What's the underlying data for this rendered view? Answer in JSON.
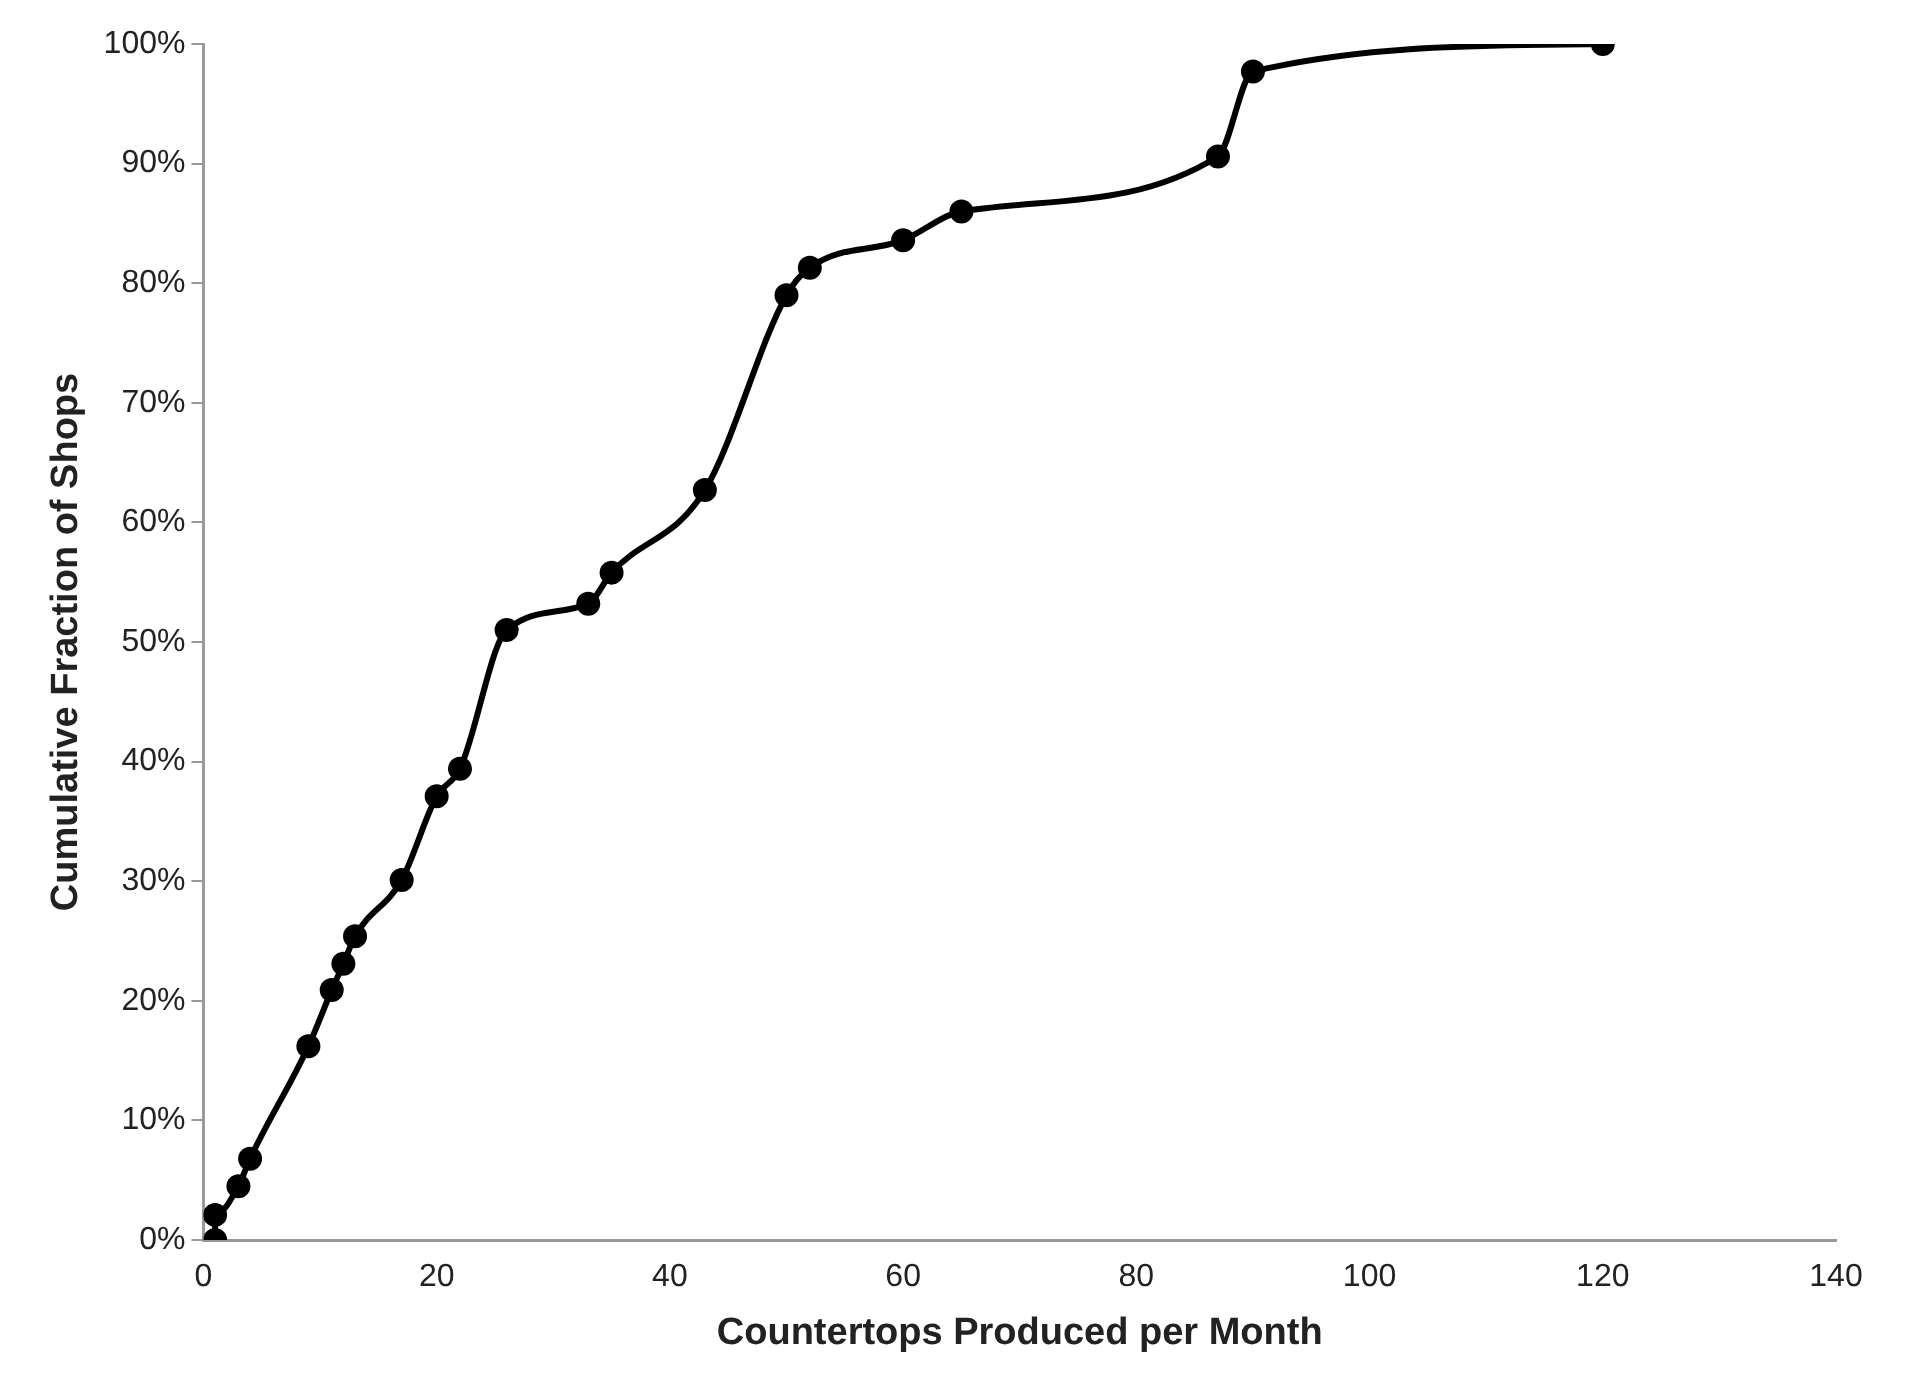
{
  "chart_data": {
    "type": "line",
    "xlabel": "Countertops Produced per Month",
    "ylabel": "Cumulative Fraction of Shops",
    "x": [
      1,
      1,
      3,
      4,
      9,
      11,
      12,
      13,
      17,
      20,
      22,
      26,
      33,
      35,
      43,
      50,
      52,
      60,
      65,
      87,
      90,
      120
    ],
    "series": [
      {
        "color": "#000000",
        "values": [
          0,
          2.1,
          4.5,
          6.8,
          16.2,
          20.9,
          23.1,
          25.4,
          30.1,
          37.1,
          39.4,
          51,
          53.2,
          55.8,
          62.7,
          79,
          81.3,
          83.6,
          86,
          90.6,
          97.7,
          100
        ]
      }
    ],
    "xlim": [
      0,
      140
    ],
    "xticks": [
      0,
      20,
      40,
      60,
      80,
      100,
      120,
      140
    ],
    "ylim": [
      0,
      100
    ],
    "yticks": [
      {
        "value": 0,
        "label": "0%"
      },
      {
        "value": 10,
        "label": "10%"
      },
      {
        "value": 20,
        "label": "20%"
      },
      {
        "value": 30,
        "label": "30%"
      },
      {
        "value": 40,
        "label": "40%"
      },
      {
        "value": 50,
        "label": "50%"
      },
      {
        "value": 60,
        "label": "60%"
      },
      {
        "value": 70,
        "label": "70%"
      },
      {
        "value": 80,
        "label": "80%"
      },
      {
        "value": 90,
        "label": "90%"
      },
      {
        "value": 100,
        "label": "100%"
      }
    ],
    "grid": false,
    "legend": false,
    "marker": "circle",
    "line_style": "solid"
  }
}
